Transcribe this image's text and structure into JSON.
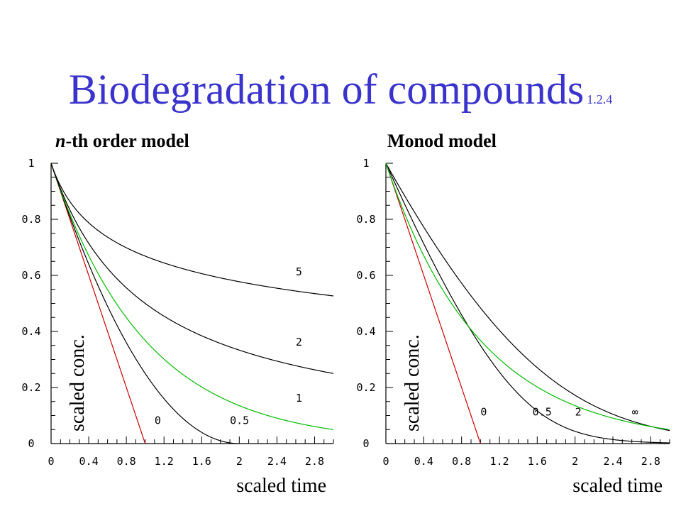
{
  "slide": {
    "title": "Biodegradation of compounds",
    "title_ref": "1.2.4",
    "title_color": "#3a33cc"
  },
  "chart_data": [
    {
      "type": "line",
      "title": "n-th order model",
      "title_italic_part": "n",
      "title_rest": "-th order model",
      "xlabel": "scaled time",
      "ylabel": "scaled conc.",
      "xlim": [
        0,
        3.0
      ],
      "ylim": [
        0,
        1
      ],
      "xticks": [
        "0",
        "0.4",
        "0.8",
        "1.2",
        "1.6",
        "2",
        "2.4",
        "2.8"
      ],
      "yticks": [
        "0",
        "0.2",
        "0.4",
        "0.6",
        "0.8",
        "1"
      ],
      "model": "nth-order",
      "series": [
        {
          "name": "0",
          "param": 0,
          "color": "#cc0000"
        },
        {
          "name": "0.5",
          "param": 0.5,
          "color": "#000000"
        },
        {
          "name": "1",
          "param": 1,
          "color": "#00bb00"
        },
        {
          "name": "2",
          "param": 2,
          "color": "#000000"
        },
        {
          "name": "5",
          "param": 5,
          "color": "#000000"
        }
      ],
      "curve_labels": [
        {
          "text": "0",
          "x": 1.1,
          "y": 0.07
        },
        {
          "text": "0.5",
          "x": 1.9,
          "y": 0.07
        },
        {
          "text": "1",
          "x": 2.6,
          "y": 0.15
        },
        {
          "text": "2",
          "x": 2.6,
          "y": 0.35
        },
        {
          "text": "5",
          "x": 2.6,
          "y": 0.6
        }
      ]
    },
    {
      "type": "line",
      "title": "Monod model",
      "xlabel": "scaled time",
      "ylabel": "scaled conc.",
      "xlim": [
        0,
        3.0
      ],
      "ylim": [
        0,
        1
      ],
      "xticks": [
        "0",
        "0.4",
        "0.8",
        "1.2",
        "1.6",
        "2",
        "2.4",
        "2.8"
      ],
      "yticks": [
        "0",
        "0.2",
        "0.4",
        "0.6",
        "0.8",
        "1"
      ],
      "model": "monod",
      "series": [
        {
          "name": "0",
          "param": 0,
          "color": "#cc0000"
        },
        {
          "name": "0.5",
          "param": 0.5,
          "color": "#000000"
        },
        {
          "name": "2",
          "param": 2,
          "color": "#000000"
        },
        {
          "name": "∞",
          "param": "inf",
          "color": "#00bb00"
        }
      ],
      "curve_labels": [
        {
          "text": "0",
          "x": 1.0,
          "y": 0.1
        },
        {
          "text": "0.5",
          "x": 1.55,
          "y": 0.1
        },
        {
          "text": "2",
          "x": 2.0,
          "y": 0.1
        },
        {
          "text": "∞",
          "x": 2.6,
          "y": 0.1
        }
      ]
    }
  ]
}
